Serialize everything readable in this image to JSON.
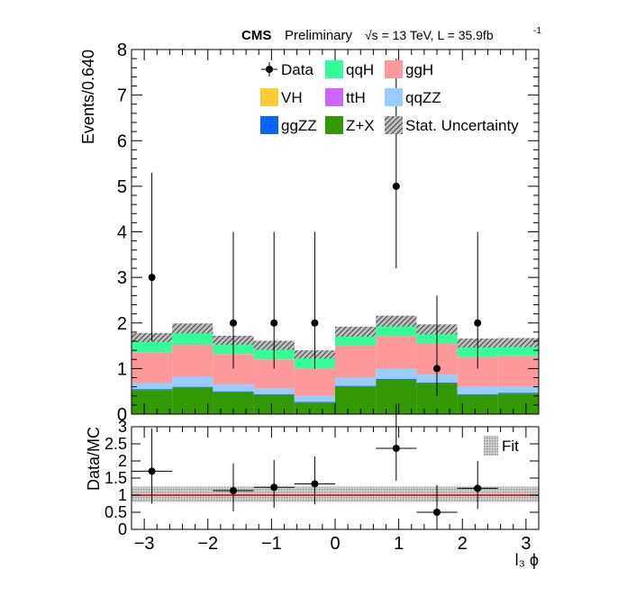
{
  "header": {
    "experiment": "CMS",
    "status": "Preliminary",
    "energy": "√s = 13 TeV, L = 35.9fb",
    "lumi_sup": "-1"
  },
  "chart_data": [
    {
      "type": "bar",
      "subtype": "stacked-histogram",
      "ylabel": "Events/0.640",
      "xlim": [
        -3.2,
        3.2
      ],
      "ylim": [
        0,
        8
      ],
      "bin_edges": [
        -3.2,
        -2.56,
        -1.92,
        -1.28,
        -0.64,
        0.0,
        0.64,
        1.28,
        1.92,
        2.56,
        3.2
      ],
      "y_ticks": [
        "0",
        "1",
        "2",
        "3",
        "4",
        "5",
        "6",
        "7",
        "8"
      ],
      "stack_order": [
        "Z+X",
        "ggZZ",
        "qqZZ",
        "ggH",
        "qqH",
        "VH",
        "ttH"
      ],
      "series": [
        {
          "name": "Z+X",
          "color": "#339900",
          "values": [
            0.53,
            0.58,
            0.48,
            0.42,
            0.25,
            0.6,
            0.75,
            0.67,
            0.42,
            0.45
          ]
        },
        {
          "name": "ggZZ",
          "color": "#0a64ff",
          "values": [
            0.02,
            0.02,
            0.02,
            0.02,
            0.02,
            0.02,
            0.02,
            0.02,
            0.02,
            0.02
          ]
        },
        {
          "name": "qqZZ",
          "color": "#99ccff",
          "values": [
            0.13,
            0.22,
            0.15,
            0.12,
            0.13,
            0.18,
            0.22,
            0.18,
            0.16,
            0.13
          ]
        },
        {
          "name": "ggH",
          "color": "#ff9999",
          "values": [
            0.67,
            0.7,
            0.67,
            0.64,
            0.6,
            0.7,
            0.72,
            0.68,
            0.65,
            0.67
          ]
        },
        {
          "name": "qqH",
          "color": "#33ff99",
          "values": [
            0.3,
            0.33,
            0.27,
            0.28,
            0.28,
            0.28,
            0.3,
            0.28,
            0.28,
            0.27
          ]
        },
        {
          "name": "VH",
          "color": "#ffcc33",
          "values": [
            0.02,
            0.02,
            0.02,
            0.02,
            0.02,
            0.02,
            0.02,
            0.02,
            0.02,
            0.02
          ]
        },
        {
          "name": "ttH",
          "color": "#cc66ff",
          "values": [
            0.01,
            0.01,
            0.01,
            0.01,
            0.01,
            0.01,
            0.01,
            0.01,
            0.01,
            0.01
          ]
        }
      ],
      "stat_uncertainty": [
        0.1,
        0.11,
        0.1,
        0.1,
        0.09,
        0.11,
        0.12,
        0.11,
        0.1,
        0.1
      ],
      "data_points": [
        {
          "x": -2.88,
          "y": 3,
          "err_low": 1.4,
          "err_high": 2.3
        },
        {
          "x": -1.6,
          "y": 2,
          "err_low": 1.0,
          "err_high": 2.0
        },
        {
          "x": -0.96,
          "y": 2,
          "err_low": 1.0,
          "err_high": 2.0
        },
        {
          "x": -0.32,
          "y": 2,
          "err_low": 1.0,
          "err_high": 2.0
        },
        {
          "x": 0.96,
          "y": 5,
          "err_low": 1.8,
          "err_high": 2.8
        },
        {
          "x": 1.6,
          "y": 1,
          "err_low": 0.6,
          "err_high": 1.6
        },
        {
          "x": 2.24,
          "y": 2,
          "err_low": 1.0,
          "err_high": 2.0
        }
      ],
      "legend": {
        "placement": "top-center",
        "entries": [
          {
            "label": "Data",
            "kind": "marker"
          },
          {
            "label": "qqH",
            "kind": "fill",
            "color": "#33ff99"
          },
          {
            "label": "ggH",
            "kind": "fill",
            "color": "#ff9999"
          },
          {
            "label": "VH",
            "kind": "fill",
            "color": "#ffcc33"
          },
          {
            "label": "ttH",
            "kind": "fill",
            "color": "#cc66ff"
          },
          {
            "label": "qqZZ",
            "kind": "fill",
            "color": "#99ccff"
          },
          {
            "label": "ggZZ",
            "kind": "fill",
            "color": "#0a64ff"
          },
          {
            "label": "Z+X",
            "kind": "fill",
            "color": "#339900"
          },
          {
            "label": "Stat. Uncertainty",
            "kind": "hatch"
          }
        ]
      }
    },
    {
      "type": "scatter",
      "subtype": "ratio",
      "ylabel": "Data/MC",
      "xlabel": "l₃ ϕ",
      "xlim": [
        -3.2,
        3.2
      ],
      "ylim": [
        0,
        3
      ],
      "x_ticks": [
        "−3",
        "−2",
        "−1",
        "0",
        "1",
        "2",
        "3"
      ],
      "x_tick_values": [
        -3,
        -2,
        -1,
        0,
        1,
        2,
        3
      ],
      "y_ticks": [
        "0",
        "0.5",
        "1",
        "1.5",
        "2",
        "2.5",
        "3"
      ],
      "fit": {
        "label": "Fit",
        "value": 1.0,
        "band_low": 0.8,
        "band_high": 1.25,
        "line_color": "#cc0000"
      },
      "points": [
        {
          "x": -2.88,
          "y": 1.7,
          "xerr": 0.32,
          "err_low": 0.95,
          "err_high": 1.25
        },
        {
          "x": -1.6,
          "y": 1.13,
          "xerr": 0.32,
          "err_low": 0.6,
          "err_high": 0.8
        },
        {
          "x": -0.96,
          "y": 1.23,
          "xerr": 0.32,
          "err_low": 0.6,
          "err_high": 0.8
        },
        {
          "x": -0.32,
          "y": 1.33,
          "xerr": 0.32,
          "err_low": 0.6,
          "err_high": 0.8
        },
        {
          "x": 0.96,
          "y": 2.37,
          "xerr": 0.32,
          "err_low": 0.95,
          "err_high": 1.3
        },
        {
          "x": 1.6,
          "y": 0.5,
          "xerr": 0.32,
          "err_low": 0.5,
          "err_high": 0.8
        },
        {
          "x": 2.24,
          "y": 1.2,
          "xerr": 0.32,
          "err_low": 0.6,
          "err_high": 0.8
        }
      ]
    }
  ]
}
